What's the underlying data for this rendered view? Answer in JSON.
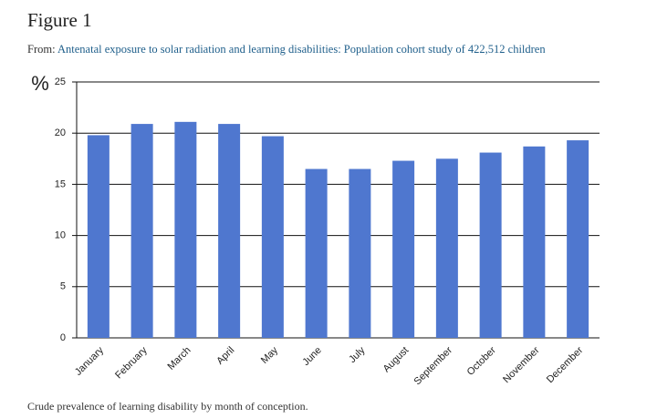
{
  "figure_label": "Figure 1",
  "source_prefix": "From:",
  "source_title": "Antenatal exposure to solar radiation and learning disabilities: Population cohort study of 422,512 children",
  "caption": "Crude prevalence of learning disability by month of conception.",
  "chart_data": {
    "type": "bar",
    "ylabel": "%",
    "categories": [
      "January",
      "February",
      "March",
      "April",
      "May",
      "June",
      "July",
      "August",
      "September",
      "October",
      "November",
      "December"
    ],
    "values": [
      19.8,
      20.9,
      21.1,
      20.9,
      19.7,
      16.5,
      16.5,
      17.3,
      17.5,
      18.1,
      18.7,
      19.3
    ],
    "color": "#4f77cf",
    "ylim": [
      0,
      25
    ],
    "yticks": [
      0,
      5,
      10,
      15,
      20,
      25
    ],
    "grid": true
  }
}
